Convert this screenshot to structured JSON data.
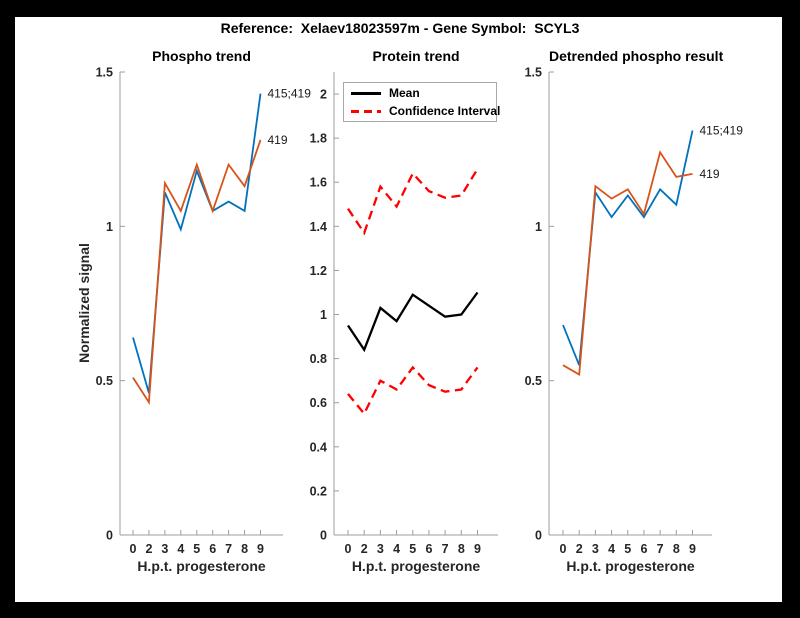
{
  "figure": {
    "title": "Reference:  Xelaev18023597m - Gene Symbol:  SCYL3",
    "background_color": "#ffffff",
    "frame_color": "#000000",
    "axis_color": "#9c9c9c",
    "tick_text_color": "#262626"
  },
  "chart_data": [
    {
      "type": "line",
      "title": "Phospho trend",
      "xlabel": "H.p.t. progesterone",
      "ylabel": "Normalized signal",
      "categories": [
        "0",
        "2",
        "3",
        "4",
        "5",
        "6",
        "7",
        "8",
        "9"
      ],
      "ylim": [
        0,
        1.5
      ],
      "yticks": [
        "0",
        "0.5",
        "1",
        "1.5"
      ],
      "grid": false,
      "series": [
        {
          "name": "415;419",
          "color": "#0072BD",
          "dash": null,
          "line_width": 1.8,
          "values": [
            0.64,
            0.46,
            1.11,
            0.99,
            1.18,
            1.05,
            1.08,
            1.05,
            1.43
          ],
          "end_label": "415;419"
        },
        {
          "name": "419",
          "color": "#D95319",
          "dash": null,
          "line_width": 1.8,
          "values": [
            0.51,
            0.43,
            1.14,
            1.05,
            1.2,
            1.05,
            1.2,
            1.13,
            1.28
          ],
          "end_label": "419"
        }
      ]
    },
    {
      "type": "line",
      "title": "Protein trend",
      "xlabel": "H.p.t. progesterone",
      "ylabel": "",
      "categories": [
        "0",
        "2",
        "3",
        "4",
        "5",
        "6",
        "7",
        "8",
        "9"
      ],
      "ylim": [
        0,
        2.1
      ],
      "yticks": [
        "0",
        "0.2",
        "0.4",
        "0.6",
        "0.8",
        "1",
        "1.2",
        "1.4",
        "1.6",
        "1.8",
        "2"
      ],
      "grid": false,
      "legend": {
        "position": "northwest",
        "entries": [
          {
            "label": "Mean",
            "color": "#000000",
            "dashed": false
          },
          {
            "label": "Confidence Interval",
            "color": "#FF0000",
            "dashed": true
          }
        ]
      },
      "series": [
        {
          "name": "Mean",
          "color": "#000000",
          "dash": null,
          "line_width": 2.3,
          "values": [
            0.95,
            0.84,
            1.03,
            0.97,
            1.09,
            1.04,
            0.99,
            1.0,
            1.1
          ],
          "end_label": null
        },
        {
          "name": "Confidence Interval upper",
          "color": "#FF0000",
          "dash": "9 5.5",
          "line_width": 2.3,
          "values": [
            1.48,
            1.37,
            1.58,
            1.49,
            1.64,
            1.56,
            1.53,
            1.54,
            1.66
          ],
          "end_label": null
        },
        {
          "name": "Confidence Interval lower",
          "color": "#FF0000",
          "dash": "9 5.5",
          "line_width": 2.3,
          "values": [
            0.64,
            0.55,
            0.7,
            0.66,
            0.76,
            0.68,
            0.65,
            0.66,
            0.76
          ],
          "end_label": null
        }
      ]
    },
    {
      "type": "line",
      "title": "Detrended phospho result",
      "xlabel": "H.p.t. progesterone",
      "ylabel": "",
      "categories": [
        "0",
        "2",
        "3",
        "4",
        "5",
        "6",
        "7",
        "8",
        "9"
      ],
      "ylim": [
        0,
        1.5
      ],
      "yticks": [
        "0",
        "0.5",
        "1",
        "1.5"
      ],
      "grid": false,
      "series": [
        {
          "name": "415;419",
          "color": "#0072BD",
          "dash": null,
          "line_width": 1.8,
          "values": [
            0.68,
            0.55,
            1.11,
            1.03,
            1.1,
            1.03,
            1.12,
            1.07,
            1.31
          ],
          "end_label": "415;419"
        },
        {
          "name": "419",
          "color": "#D95319",
          "dash": null,
          "line_width": 1.8,
          "values": [
            0.55,
            0.52,
            1.13,
            1.09,
            1.12,
            1.04,
            1.24,
            1.16,
            1.17
          ],
          "end_label": "419"
        }
      ]
    }
  ]
}
